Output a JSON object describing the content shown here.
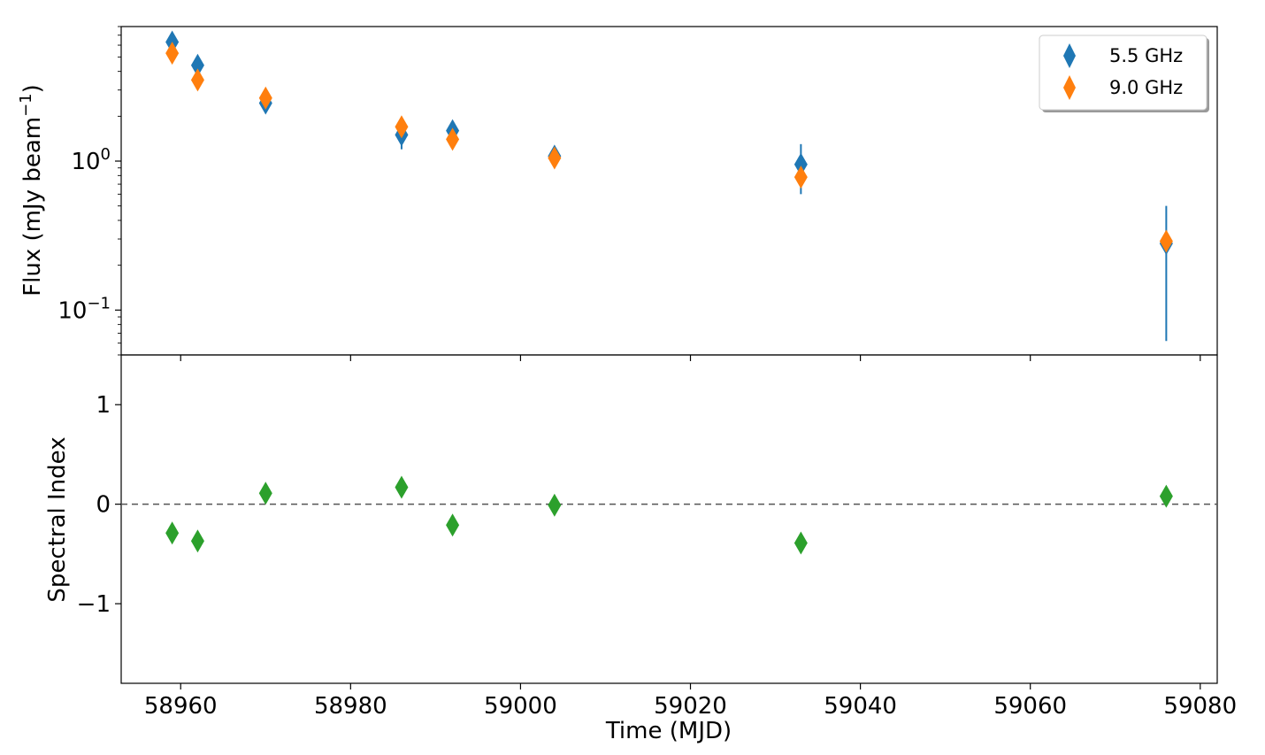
{
  "colors": {
    "series_55": "#1f77b4",
    "series_90": "#ff7f0e",
    "spectral": "#2ca02c",
    "zero_line": "#555555"
  },
  "chart_data": [
    {
      "type": "scatter",
      "panel": "top",
      "ylabel": "Flux (mJy beam",
      "ylabel_sup": "−1",
      "ylabel_suffix": ")",
      "yscale": "log",
      "ylim": [
        0.05,
        8.0
      ],
      "xlim": [
        58953,
        59082
      ],
      "y_tick_labels": [
        {
          "value": 1,
          "base": "10",
          "exp": "0"
        },
        {
          "value": 0.1,
          "base": "10",
          "exp": "−1"
        }
      ],
      "legend": "top-right",
      "series": [
        {
          "name": "5.5 GHz",
          "color": "#1f77b4",
          "points": [
            {
              "x": 58959,
              "y": 6.3,
              "lo": 5.9,
              "hi": 6.7
            },
            {
              "x": 58962,
              "y": 4.4,
              "lo": 4.1,
              "hi": 4.7
            },
            {
              "x": 58970,
              "y": 2.45,
              "lo": 2.3,
              "hi": 2.6
            },
            {
              "x": 58986,
              "y": 1.5,
              "lo": 1.2,
              "hi": 1.8
            },
            {
              "x": 58992,
              "y": 1.6,
              "lo": 1.5,
              "hi": 1.7
            },
            {
              "x": 59004,
              "y": 1.08,
              "lo": 1.0,
              "hi": 1.16
            },
            {
              "x": 59033,
              "y": 0.95,
              "lo": 0.6,
              "hi": 1.3
            },
            {
              "x": 59076,
              "y": 0.28,
              "lo": 0.062,
              "hi": 0.5
            }
          ]
        },
        {
          "name": "9.0 GHz",
          "color": "#ff7f0e",
          "points": [
            {
              "x": 58959,
              "y": 5.3,
              "lo": 5.0,
              "hi": 5.6
            },
            {
              "x": 58962,
              "y": 3.5,
              "lo": 3.3,
              "hi": 3.7
            },
            {
              "x": 58970,
              "y": 2.65,
              "lo": 2.5,
              "hi": 2.8
            },
            {
              "x": 58986,
              "y": 1.7,
              "lo": 1.6,
              "hi": 1.8
            },
            {
              "x": 58992,
              "y": 1.4,
              "lo": 1.32,
              "hi": 1.48
            },
            {
              "x": 59004,
              "y": 1.05,
              "lo": 1.0,
              "hi": 1.1
            },
            {
              "x": 59033,
              "y": 0.78,
              "lo": 0.7,
              "hi": 0.86
            },
            {
              "x": 59076,
              "y": 0.29,
              "lo": 0.27,
              "hi": 0.31
            }
          ]
        }
      ]
    },
    {
      "type": "scatter",
      "panel": "bottom",
      "ylabel": "Spectral Index",
      "xlabel": "Time (MJD)",
      "ylim": [
        -1.8,
        1.5
      ],
      "xlim": [
        58953,
        59082
      ],
      "x_ticks": [
        58960,
        58980,
        59000,
        59020,
        59040,
        59060,
        59080
      ],
      "x_tick_labels": [
        "58960",
        "58980",
        "59000",
        "59020",
        "59040",
        "59060",
        "59080"
      ],
      "y_ticks": [
        1,
        0,
        -1
      ],
      "y_tick_labels": [
        "1",
        "0",
        "−1"
      ],
      "reference_line": 0,
      "series": [
        {
          "color": "#2ca02c",
          "x": [
            58959,
            58962,
            58970,
            58986,
            58992,
            59004,
            59033,
            59076
          ],
          "y": [
            -0.29,
            -0.37,
            0.11,
            0.17,
            -0.21,
            -0.01,
            -0.39,
            0.08
          ]
        }
      ]
    }
  ]
}
